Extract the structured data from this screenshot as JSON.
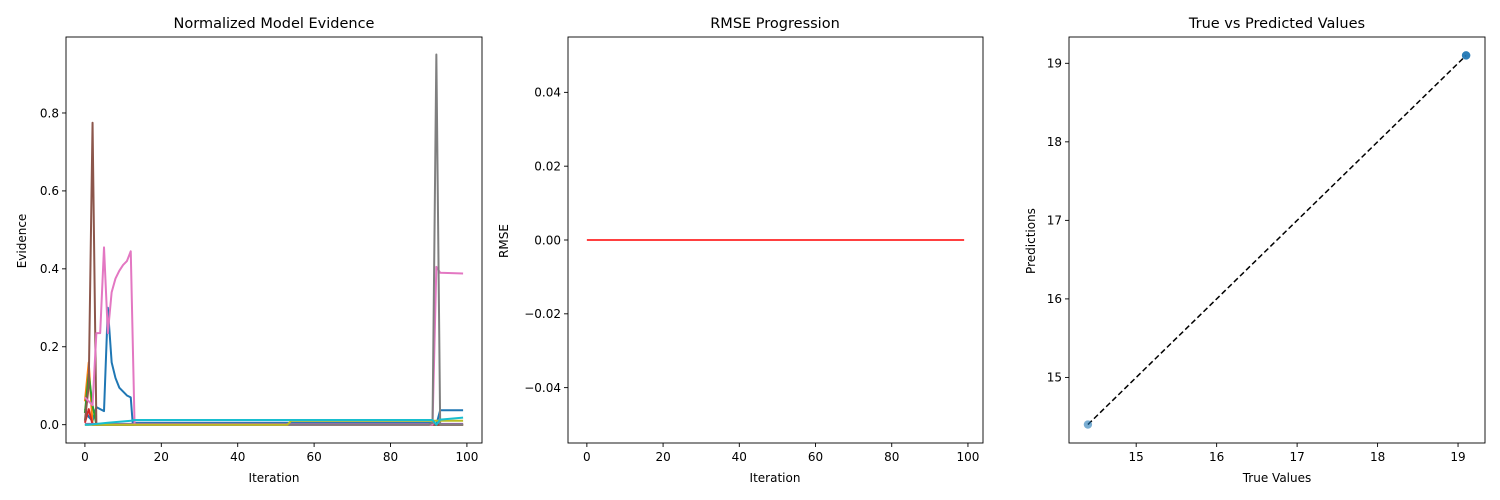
{
  "chart_data": [
    {
      "type": "line",
      "title": "Normalized Model Evidence",
      "xlabel": "Iteration",
      "ylabel": "Evidence",
      "xlim": [
        -4.95,
        103.95
      ],
      "ylim": [
        -0.047,
        0.995
      ],
      "xticks": [
        0,
        20,
        40,
        60,
        80,
        100
      ],
      "yticks": [
        0.0,
        0.2,
        0.4,
        0.6,
        0.8
      ],
      "ytick_labels": [
        "0.0",
        "0.2",
        "0.4",
        "0.6",
        "0.8"
      ],
      "grid": false,
      "series": [
        {
          "color": "#1f77b4",
          "points": [
            [
              0,
              0.04
            ],
            [
              1,
              0.02
            ],
            [
              2,
              0.01
            ],
            [
              3,
              0.045
            ],
            [
              4,
              0.04
            ],
            [
              5,
              0.035
            ],
            [
              6,
              0.3
            ],
            [
              7,
              0.16
            ],
            [
              8,
              0.12
            ],
            [
              9,
              0.095
            ],
            [
              10,
              0.085
            ],
            [
              11,
              0.075
            ],
            [
              12,
              0.07
            ],
            [
              12.5,
              0.005
            ],
            [
              20,
              0.005
            ],
            [
              40,
              0.005
            ],
            [
              60,
              0.005
            ],
            [
              80,
              0.005
            ],
            [
              91,
              0.005
            ],
            [
              92,
              0.0
            ],
            [
              93,
              0.037
            ],
            [
              99,
              0.037
            ]
          ]
        },
        {
          "color": "#ff7f0e",
          "points": [
            [
              0,
              0.06
            ],
            [
              1,
              0.16
            ],
            [
              2,
              0.0
            ],
            [
              5,
              0.0
            ],
            [
              99,
              0.0
            ]
          ]
        },
        {
          "color": "#2ca02c",
          "points": [
            [
              0,
              0.03
            ],
            [
              1,
              0.13
            ],
            [
              2,
              0.05
            ],
            [
              3,
              0.0
            ],
            [
              99,
              0.0
            ]
          ]
        },
        {
          "color": "#d62728",
          "points": [
            [
              0,
              0.005
            ],
            [
              1,
              0.04
            ],
            [
              2,
              0.0
            ],
            [
              99,
              0.0
            ]
          ]
        },
        {
          "color": "#9467bd",
          "points": [
            [
              0,
              0.002
            ],
            [
              5,
              0.002
            ],
            [
              99,
              0.002
            ]
          ]
        },
        {
          "color": "#8c564b",
          "points": [
            [
              0,
              0.01
            ],
            [
              1,
              0.1
            ],
            [
              2,
              0.775
            ],
            [
              3,
              0.0
            ],
            [
              99,
              0.0
            ]
          ]
        },
        {
          "color": "#e377c2",
          "points": [
            [
              0,
              0.07
            ],
            [
              1,
              0.06
            ],
            [
              2,
              0.05
            ],
            [
              3,
              0.235
            ],
            [
              4,
              0.235
            ],
            [
              5,
              0.455
            ],
            [
              6,
              0.235
            ],
            [
              7,
              0.34
            ],
            [
              8,
              0.375
            ],
            [
              9,
              0.395
            ],
            [
              10,
              0.41
            ],
            [
              11,
              0.42
            ],
            [
              12,
              0.445
            ],
            [
              13,
              0.0
            ],
            [
              20,
              0.0
            ],
            [
              91,
              0.0
            ],
            [
              92,
              0.405
            ],
            [
              93,
              0.39
            ],
            [
              99,
              0.388
            ]
          ]
        },
        {
          "color": "#7f7f7f",
          "points": [
            [
              0,
              0.0
            ],
            [
              90,
              0.0
            ],
            [
              91,
              0.005
            ],
            [
              92,
              0.95
            ],
            [
              93,
              0.0
            ],
            [
              99,
              0.0
            ]
          ]
        },
        {
          "color": "#bcbd22",
          "points": [
            [
              0,
              0.0
            ],
            [
              53,
              0.0
            ],
            [
              54,
              0.01
            ],
            [
              99,
              0.01
            ]
          ]
        },
        {
          "color": "#17becf",
          "points": [
            [
              0,
              0.0
            ],
            [
              1,
              0.0
            ],
            [
              6,
              0.005
            ],
            [
              12,
              0.01
            ],
            [
              13,
              0.012
            ],
            [
              91,
              0.012
            ],
            [
              92,
              0.0
            ],
            [
              93,
              0.013
            ],
            [
              99,
              0.018
            ]
          ]
        }
      ]
    },
    {
      "type": "line",
      "title": "RMSE Progression",
      "xlabel": "Iteration",
      "ylabel": "RMSE",
      "xlim": [
        -4.95,
        103.95
      ],
      "ylim": [
        -0.055,
        0.055
      ],
      "xticks": [
        0,
        20,
        40,
        60,
        80,
        100
      ],
      "yticks": [
        -0.04,
        -0.02,
        0.0,
        0.02,
        0.04
      ],
      "ytick_labels": [
        "−0.04",
        "−0.02",
        "0.00",
        "0.02",
        "0.04"
      ],
      "grid": false,
      "series": [
        {
          "color": "#ff0000",
          "points": [
            [
              0,
              0.0
            ],
            [
              99,
              0.0
            ]
          ]
        }
      ]
    },
    {
      "type": "scatter",
      "title": "True vs Predicted Values",
      "xlabel": "True Values",
      "ylabel": "Predictions",
      "xlim": [
        14.165,
        19.335
      ],
      "ylim": [
        14.165,
        19.335
      ],
      "xticks": [
        15,
        16,
        17,
        18,
        19
      ],
      "yticks": [
        15,
        16,
        17,
        18,
        19
      ],
      "xtick_labels": [
        "15",
        "16",
        "17",
        "18",
        "19"
      ],
      "ytick_labels": [
        "15",
        "16",
        "17",
        "18",
        "19"
      ],
      "grid": false,
      "points": [
        [
          14.4,
          14.4
        ],
        [
          19.1,
          19.1
        ],
        [
          19.1,
          19.1
        ],
        [
          19.1,
          19.1
        ]
      ],
      "point_color": "#1f77b4",
      "reference_line": {
        "points": [
          [
            14.4,
            14.4
          ],
          [
            19.1,
            19.1
          ]
        ],
        "color": "#000000",
        "style": "dashed"
      }
    }
  ]
}
